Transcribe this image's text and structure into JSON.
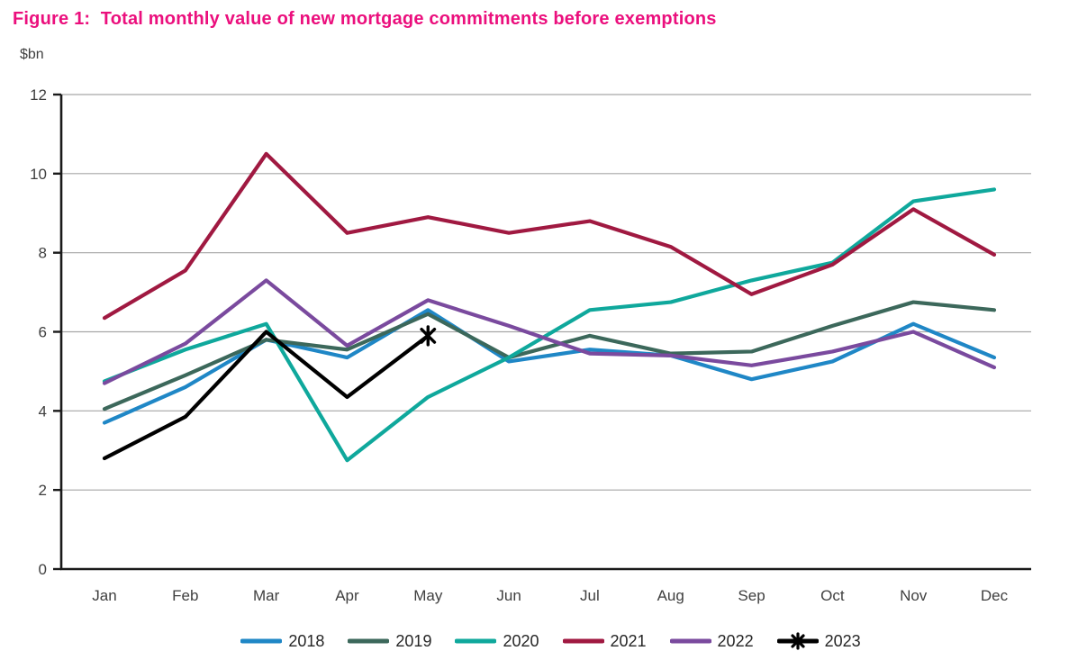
{
  "figure": {
    "title": "Figure 1:  Total monthly value of new mortgage commitments before exemptions",
    "y_unit_label": "$bn"
  },
  "colors": {
    "title": "#eb0f7d",
    "axis": "#1a1a1a",
    "gridline": "#a6a6a6",
    "tick_label": "#3f3f3f",
    "legend_label": "#262626"
  },
  "chart_data": {
    "type": "line",
    "title": "Figure 1: Total monthly value of new mortgage commitments before exemptions",
    "xlabel": "",
    "ylabel": "$bn",
    "categories": [
      "Jan",
      "Feb",
      "Mar",
      "Apr",
      "May",
      "Jun",
      "Jul",
      "Aug",
      "Sep",
      "Oct",
      "Nov",
      "Dec"
    ],
    "ylim": [
      0,
      12
    ],
    "yticks": [
      0,
      2,
      4,
      6,
      8,
      10,
      12
    ],
    "grid": true,
    "legend_position": "bottom",
    "series": [
      {
        "name": "2018",
        "color": "#1f87c6",
        "end_marker": "none",
        "values": [
          3.7,
          4.6,
          5.8,
          5.35,
          6.55,
          5.25,
          5.55,
          5.4,
          4.8,
          5.25,
          6.2,
          5.35
        ]
      },
      {
        "name": "2019",
        "color": "#3c685b",
        "end_marker": "none",
        "values": [
          4.05,
          4.9,
          5.8,
          5.55,
          6.45,
          5.35,
          5.9,
          5.45,
          5.5,
          6.15,
          6.75,
          6.55
        ]
      },
      {
        "name": "2020",
        "color": "#0fa89c",
        "end_marker": "none",
        "values": [
          4.75,
          5.55,
          6.2,
          2.75,
          4.35,
          5.35,
          6.55,
          6.75,
          7.3,
          7.75,
          9.3,
          9.6
        ]
      },
      {
        "name": "2021",
        "color": "#a01941",
        "end_marker": "none",
        "values": [
          6.35,
          7.55,
          10.5,
          8.5,
          8.9,
          8.5,
          8.8,
          8.15,
          6.95,
          7.7,
          9.1,
          7.95
        ]
      },
      {
        "name": "2022",
        "color": "#7a4a9e",
        "end_marker": "none",
        "values": [
          4.7,
          5.7,
          7.3,
          5.65,
          6.8,
          6.15,
          5.45,
          5.4,
          5.15,
          5.5,
          6.0,
          5.1
        ]
      },
      {
        "name": "2023",
        "color": "#000000",
        "end_marker": "asterisk",
        "values": [
          2.8,
          3.85,
          6.0,
          4.35,
          5.9
        ]
      }
    ]
  }
}
